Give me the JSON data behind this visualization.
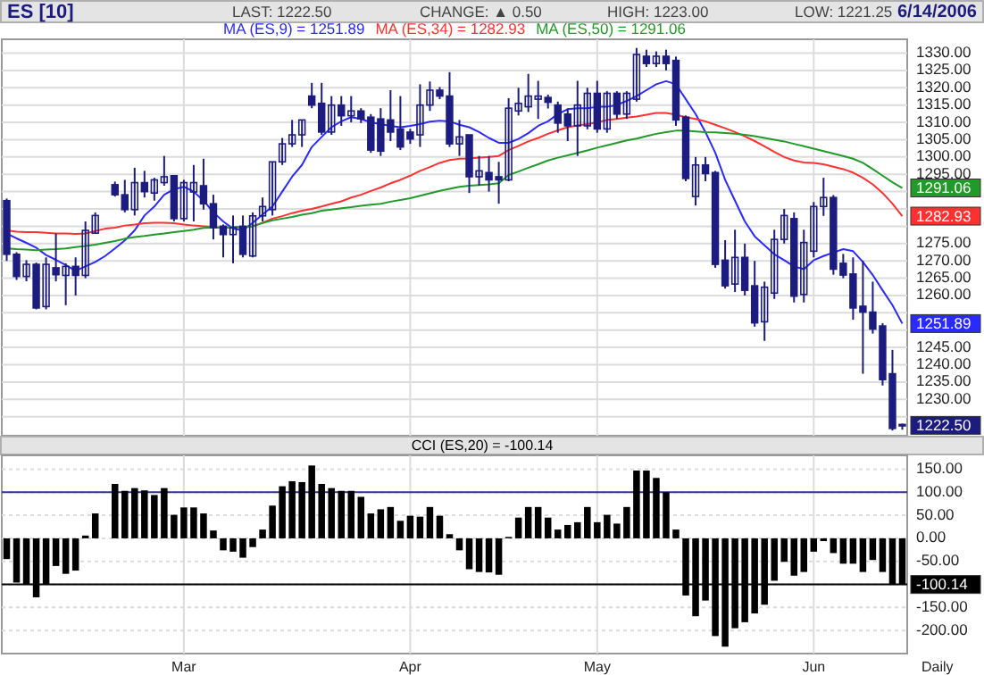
{
  "chart_data": [
    {
      "type": "candlestick",
      "title": "ES [10]",
      "color": "#1c1c80",
      "legend": "top",
      "grid": true,
      "tick_labels": "y",
      "categories": [
        null,
        null,
        null,
        null,
        null,
        null,
        null,
        null,
        null,
        null,
        null,
        null,
        null,
        null,
        null,
        null,
        null,
        null,
        null,
        null,
        null,
        null,
        null,
        null,
        null,
        null,
        null,
        null,
        null,
        null,
        null,
        null,
        null,
        null,
        null,
        null,
        null,
        null,
        null,
        null,
        null,
        null,
        null,
        null,
        null,
        null,
        null,
        null,
        null,
        null,
        null,
        null,
        null,
        null,
        null,
        null,
        null,
        null,
        null,
        null,
        null,
        null,
        null,
        null,
        null,
        null,
        null,
        null,
        null,
        null,
        null,
        null,
        null,
        null,
        null,
        null,
        null,
        null,
        null,
        null,
        null,
        null,
        null,
        null,
        null,
        null,
        null,
        null,
        null,
        null,
        null,
        null
      ],
      "ylim": [
        1219.5,
        1334
      ],
      "yticks": [
        {
          "value": 1225,
          "label": null
        },
        {
          "value": 1230,
          "label": "1230.00"
        },
        {
          "value": 1235,
          "label": "1235.00"
        },
        {
          "value": 1240,
          "label": "1240.00"
        },
        {
          "value": 1245,
          "label": "1245.00"
        },
        {
          "value": 1250,
          "label": null
        },
        {
          "value": 1255,
          "label": null
        },
        {
          "value": 1260,
          "label": "1260.00"
        },
        {
          "value": 1265,
          "label": "1265.00"
        },
        {
          "value": 1270,
          "label": "1270.00"
        },
        {
          "value": 1275,
          "label": "1275.00"
        },
        {
          "value": 1280,
          "label": null
        },
        {
          "value": 1285,
          "label": null
        },
        {
          "value": 1290,
          "label": null
        },
        {
          "value": 1295,
          "label": "1295.00"
        },
        {
          "value": 1300,
          "label": "1300.00"
        },
        {
          "value": 1305,
          "label": "1305.00"
        },
        {
          "value": 1310,
          "label": "1310.00"
        },
        {
          "value": 1315,
          "label": "1315.00"
        },
        {
          "value": 1320,
          "label": "1320.00"
        },
        {
          "value": 1325,
          "label": "1325.00"
        },
        {
          "value": 1330,
          "label": "1330.00"
        }
      ],
      "ohlc": [
        [
          1287.4,
          1288,
          1270,
          1271.9
        ],
        [
          1271.9,
          1272.5,
          1264.5,
          1265.5
        ],
        [
          1265.5,
          1270.2,
          1264.1,
          1269
        ],
        [
          1269,
          1269.5,
          1256,
          1256.4
        ],
        [
          1256.8,
          1271,
          1256,
          1269
        ],
        [
          1268,
          1277.9,
          1264.1,
          1266
        ],
        [
          1265.8,
          1269.3,
          1257.2,
          1268.4
        ],
        [
          1268.4,
          1271,
          1260,
          1265.8
        ],
        [
          1265.8,
          1281.4,
          1265,
          1278.8
        ],
        [
          1278,
          1284,
          1277.9,
          1283.1
        ],
        null,
        [
          1292,
          1292.9,
          1288.6,
          1289.1
        ],
        [
          1289.1,
          1293.4,
          1284,
          1284.8
        ],
        [
          1284.8,
          1296.9,
          1283.1,
          1292.6
        ],
        [
          1292.6,
          1296,
          1288.3,
          1290
        ],
        [
          1289.6,
          1294,
          1287.4,
          1293.4
        ],
        [
          1292.6,
          1300.3,
          1291.7,
          1294.3
        ],
        [
          1294.6,
          1294.8,
          1281.4,
          1282.2
        ],
        [
          1282.2,
          1293.4,
          1281.4,
          1292.6
        ],
        [
          1289.9,
          1297.7,
          1281.4,
          1292.6
        ],
        [
          1291.7,
          1299.5,
          1284.8,
          1286.5
        ],
        [
          1286.5,
          1289.1,
          1276.2,
          1279.6
        ],
        [
          1280,
          1280.5,
          1271,
          1277.6
        ],
        [
          1277.6,
          1283.1,
          1269.3,
          1279.6
        ],
        [
          1280,
          1283.1,
          1271,
          1271.9
        ],
        [
          1271.4,
          1284,
          1271,
          1283
        ],
        [
          1283,
          1288.3,
          1281.4,
          1285.7
        ],
        [
          1284.8,
          1298.6,
          1283.1,
          1298.6
        ],
        [
          1298.6,
          1305.5,
          1297.7,
          1303.8
        ],
        [
          1303.8,
          1310.7,
          1302.9,
          1306.4
        ],
        [
          1306.4,
          1310.7,
          1302.9,
          1310.7
        ],
        [
          1317.6,
          1321.4,
          1314.1,
          1315
        ],
        [
          1315.5,
          1321.4,
          1306.4,
          1307.2
        ],
        [
          1307.2,
          1317.6,
          1306.4,
          1315
        ],
        [
          1315,
          1317.6,
          1309,
          1311.9
        ],
        [
          1311.9,
          1317.6,
          1310,
          1313.3
        ],
        [
          1313.3,
          1314.1,
          1309.8,
          1311
        ],
        [
          1311.5,
          1312.4,
          1301.2,
          1302
        ],
        [
          1311,
          1314.1,
          1300.3,
          1301.7
        ],
        [
          1310.7,
          1319.3,
          1304.6,
          1307.2
        ],
        [
          1308.1,
          1317.6,
          1302,
          1302.9
        ],
        [
          1307.2,
          1308.1,
          1303.8,
          1305.2
        ],
        [
          1306.4,
          1321,
          1302.9,
          1315
        ],
        [
          1315,
          1321.8,
          1313.3,
          1319.3
        ],
        [
          1319.3,
          1320.2,
          1316.7,
          1317.6
        ],
        [
          1317.6,
          1324.5,
          1302.9,
          1303.8
        ],
        [
          1303.8,
          1310.7,
          1300.3,
          1305.8
        ],
        [
          1306.4,
          1306.4,
          1289.6,
          1294.3
        ],
        [
          1294.3,
          1300.3,
          1291.7,
          1296
        ],
        [
          1295.5,
          1300.3,
          1290,
          1293.4
        ],
        [
          1294.3,
          1298.6,
          1286.5,
          1293.4
        ],
        [
          1293.4,
          1317,
          1293,
          1314.1
        ],
        [
          1313.3,
          1320,
          1312,
          1315.5
        ],
        [
          1314.5,
          1324,
          1313,
          1317.6
        ],
        [
          1316.7,
          1322,
          1311,
          1317.6
        ],
        [
          1317.2,
          1318,
          1314,
          1315.8
        ],
        [
          1315,
          1316,
          1307,
          1309.8
        ],
        [
          1312.4,
          1314,
          1304.6,
          1309
        ],
        [
          1309,
          1322,
          1300.3,
          1315
        ],
        [
          1309,
          1320,
          1308,
          1318.4
        ],
        [
          1318.4,
          1322,
          1307,
          1308.1
        ],
        [
          1308.1,
          1319,
          1307,
          1318.4
        ],
        [
          1318.4,
          1319,
          1311,
          1312.4
        ],
        [
          1312.4,
          1319,
          1311,
          1318.4
        ],
        [
          1316.7,
          1331.5,
          1316,
          1329.6
        ],
        [
          1329.1,
          1331,
          1326,
          1327
        ],
        [
          1327,
          1330.5,
          1326,
          1329.1
        ],
        [
          1329.1,
          1331,
          1325,
          1327
        ],
        [
          1327.9,
          1329,
          1309,
          1310.7
        ],
        [
          1311.5,
          1312,
          1293,
          1293.8
        ],
        [
          1288.6,
          1300,
          1286,
          1297.7
        ],
        [
          1297.7,
          1300,
          1293,
          1295.2
        ],
        [
          1295.5,
          1296,
          1268,
          1269
        ],
        [
          1270.2,
          1276,
          1262,
          1262.8
        ],
        [
          1263.3,
          1279,
          1261,
          1271
        ],
        [
          1271,
          1275,
          1260,
          1261.5
        ],
        [
          1262.8,
          1270,
          1251,
          1252.1
        ],
        [
          1252.4,
          1264,
          1246.9,
          1262.4
        ],
        [
          1260.7,
          1279,
          1259,
          1276.2
        ],
        [
          1276.2,
          1285,
          1275,
          1283.1
        ],
        [
          1282.2,
          1284,
          1258,
          1259.8
        ],
        [
          1260.3,
          1279,
          1258,
          1275.3
        ],
        [
          1272.8,
          1287,
          1271,
          1285.7
        ],
        [
          1285.7,
          1294,
          1283,
          1288.3
        ],
        [
          1288.3,
          1289,
          1266,
          1267.6
        ],
        [
          1269.3,
          1272,
          1265,
          1265.9
        ],
        [
          1266.2,
          1271,
          1253,
          1256.4
        ],
        [
          1256.9,
          1270,
          1237.4,
          1255.2
        ],
        [
          1255.2,
          1264,
          1249,
          1250.3
        ],
        [
          1251.2,
          1252,
          1234,
          1235.7
        ],
        [
          1237.4,
          1244.3,
          1221,
          1221.6
        ],
        [
          1222.75,
          1223,
          1221.25,
          1222.5
        ]
      ],
      "series": [
        {
          "type": "line",
          "name": "MA (ES,9) = 1251.89",
          "color": "#2a2aff",
          "values": [
            1277.9,
            1276.5,
            1275.2,
            1273.8,
            1271.7,
            1270.3,
            1268.8,
            1267.1,
            1268.4,
            1269.7,
            1271.4,
            1273.6,
            1275.9,
            1278.8,
            1283.1,
            1285.7,
            1289.1,
            1290.7,
            1291.4,
            1290,
            1287.4,
            1284,
            1281.4,
            1279.3,
            1278.8,
            1281,
            1283.4,
            1285.7,
            1290,
            1294.3,
            1297.7,
            1302.9,
            1305.8,
            1308.6,
            1310.3,
            1311.5,
            1311,
            1310,
            1309.5,
            1309,
            1308.6,
            1309,
            1309.5,
            1310.2,
            1310.5,
            1310.3,
            1309.3,
            1308.6,
            1307.2,
            1305.5,
            1304.1,
            1304.1,
            1305.2,
            1306.9,
            1309,
            1310.3,
            1312.4,
            1313.8,
            1314.1,
            1314.1,
            1314.5,
            1314.5,
            1315,
            1316.2,
            1317.6,
            1319.3,
            1321,
            1321.9,
            1321,
            1316.7,
            1312.4,
            1307.2,
            1301.2,
            1293.4,
            1287.4,
            1281.4,
            1277.1,
            1274.5,
            1271.9,
            1270.2,
            1268.4,
            1267.6,
            1270.2,
            1271.4,
            1272.4,
            1273.4,
            1272.8,
            1269.7,
            1265.9,
            1261.5,
            1257.2,
            1251.89
          ]
        },
        {
          "type": "line",
          "name": "MA (ES,34) = 1282.93",
          "color": "#ff3030",
          "values": [
            1278.8,
            1278.4,
            1278.3,
            1278.3,
            1278.1,
            1277.9,
            1277.9,
            1277.8,
            1277.9,
            1278.6,
            1279.3,
            1279.6,
            1280.2,
            1280.5,
            1280.9,
            1281,
            1281,
            1280.9,
            1280.5,
            1280.2,
            1280,
            1279.8,
            1279.6,
            1279.6,
            1279.8,
            1280,
            1281,
            1282.2,
            1282.9,
            1283.8,
            1284.5,
            1285,
            1285.7,
            1286.5,
            1287.2,
            1288.3,
            1289.1,
            1290.2,
            1291.2,
            1292.4,
            1293.4,
            1294.6,
            1296,
            1297.1,
            1298.3,
            1299.1,
            1299.5,
            1299.6,
            1299.8,
            1300,
            1300.3,
            1302,
            1303.2,
            1304.5,
            1305.5,
            1306.7,
            1307.7,
            1308.6,
            1309.1,
            1309.5,
            1310,
            1310.7,
            1311,
            1311.4,
            1311.7,
            1312.2,
            1312.7,
            1312.7,
            1312.2,
            1311.5,
            1311,
            1310.3,
            1309.3,
            1308.3,
            1307.2,
            1306,
            1304.6,
            1303.1,
            1301.5,
            1300,
            1299,
            1298.4,
            1298.3,
            1297.9,
            1297.2,
            1296.5,
            1295.5,
            1294,
            1292.1,
            1289.6,
            1286.5,
            1282.93
          ]
        },
        {
          "type": "line",
          "name": "MA (ES,50) = 1291.06",
          "color": "#229a2a",
          "values": [
            1273.6,
            1273.4,
            1273.3,
            1273.1,
            1273.3,
            1273.4,
            1273.6,
            1274,
            1274.3,
            1274.7,
            1275.2,
            1275.7,
            1276.4,
            1276.9,
            1277.2,
            1277.6,
            1277.9,
            1278.3,
            1278.6,
            1279,
            1279.5,
            1279.6,
            1279.6,
            1279.8,
            1279.8,
            1280,
            1280.9,
            1281.7,
            1282.2,
            1282.7,
            1283.3,
            1283.8,
            1284.5,
            1284.8,
            1285.2,
            1285.5,
            1285.9,
            1286.2,
            1286.5,
            1287.1,
            1287.6,
            1288.1,
            1288.8,
            1289.5,
            1290.2,
            1290.8,
            1291.4,
            1291.7,
            1291.9,
            1292.1,
            1292.4,
            1294.8,
            1295.8,
            1296.9,
            1297.9,
            1299,
            1299.8,
            1300.5,
            1301.2,
            1301.9,
            1302.7,
            1303.4,
            1304.1,
            1304.8,
            1305.3,
            1306,
            1306.7,
            1307.2,
            1307.6,
            1307.6,
            1307.4,
            1307.2,
            1307.1,
            1306.9,
            1306.7,
            1306.4,
            1306,
            1305.5,
            1305,
            1304.5,
            1303.8,
            1303.1,
            1302.4,
            1301.7,
            1301,
            1300.3,
            1299.5,
            1298.3,
            1296.5,
            1294.6,
            1292.7,
            1291.06
          ]
        }
      ],
      "annotations": [
        "LAST: 1222.50",
        "CHANGE: ▲ 0.50",
        "HIGH: 1223.00",
        "LOW: 1221.25",
        "6/14/2006",
        "1251.89",
        "1282.93",
        "1291.06",
        "1222.50"
      ]
    },
    {
      "type": "bar",
      "title": "CCI (ES,20) = -100.14",
      "color": "#000000",
      "grid": true,
      "categories": [
        null,
        null,
        null,
        null,
        null,
        null,
        null,
        null,
        null,
        null,
        null,
        null,
        null,
        null,
        null,
        null,
        null,
        null,
        "Mar",
        null,
        null,
        null,
        null,
        null,
        null,
        null,
        null,
        null,
        null,
        null,
        null,
        null,
        null,
        null,
        null,
        null,
        null,
        null,
        null,
        null,
        null,
        "Apr",
        null,
        null,
        null,
        null,
        null,
        null,
        null,
        null,
        null,
        null,
        null,
        null,
        null,
        null,
        null,
        null,
        null,
        null,
        "May",
        null,
        null,
        null,
        null,
        null,
        null,
        null,
        null,
        null,
        null,
        null,
        null,
        null,
        null,
        null,
        null,
        null,
        null,
        null,
        null,
        null,
        "Jun",
        null,
        null,
        null,
        null,
        null,
        null,
        null,
        null,
        null
      ],
      "ylim": [
        -250,
        180
      ],
      "yticks": [
        {
          "value": -200,
          "label": "-200.00"
        },
        {
          "value": -150,
          "label": "-150.00"
        },
        {
          "value": -100,
          "label": null
        },
        {
          "value": -50,
          "label": "-50.00"
        },
        {
          "value": 0,
          "label": "0.00"
        },
        {
          "value": 50,
          "label": "50.00"
        },
        {
          "value": 100,
          "label": "100.00"
        },
        {
          "value": 150,
          "label": "150.00"
        }
      ],
      "values": [
        -45,
        -96,
        -99,
        -128,
        -99,
        -60,
        -77,
        -70,
        6,
        54,
        null,
        118,
        103,
        109,
        104,
        94,
        109,
        51,
        67,
        67,
        54,
        17,
        -26,
        -29,
        -42,
        -19,
        19,
        71,
        113,
        124,
        122,
        158,
        118,
        109,
        103,
        103,
        90,
        54,
        63,
        68,
        38,
        49,
        47,
        68,
        49,
        9,
        -26,
        -67,
        -73,
        -74,
        -79,
        3,
        45,
        68,
        68,
        45,
        19,
        29,
        35,
        68,
        35,
        51,
        32,
        68,
        147,
        147,
        131,
        100,
        19,
        -124,
        -169,
        -135,
        -212,
        -235,
        -195,
        -182,
        -163,
        -144,
        -92,
        -51,
        -81,
        -73,
        -29,
        -6,
        -32,
        -55,
        -55,
        -73,
        -47,
        -73,
        -101,
        -100.14
      ],
      "ref_lines": [
        {
          "axis": "y",
          "value": 100,
          "color": "#3030a0"
        },
        {
          "axis": "y",
          "value": -100,
          "color": "#000000"
        }
      ],
      "annotations": [
        "Daily",
        "-100.14"
      ]
    }
  ]
}
